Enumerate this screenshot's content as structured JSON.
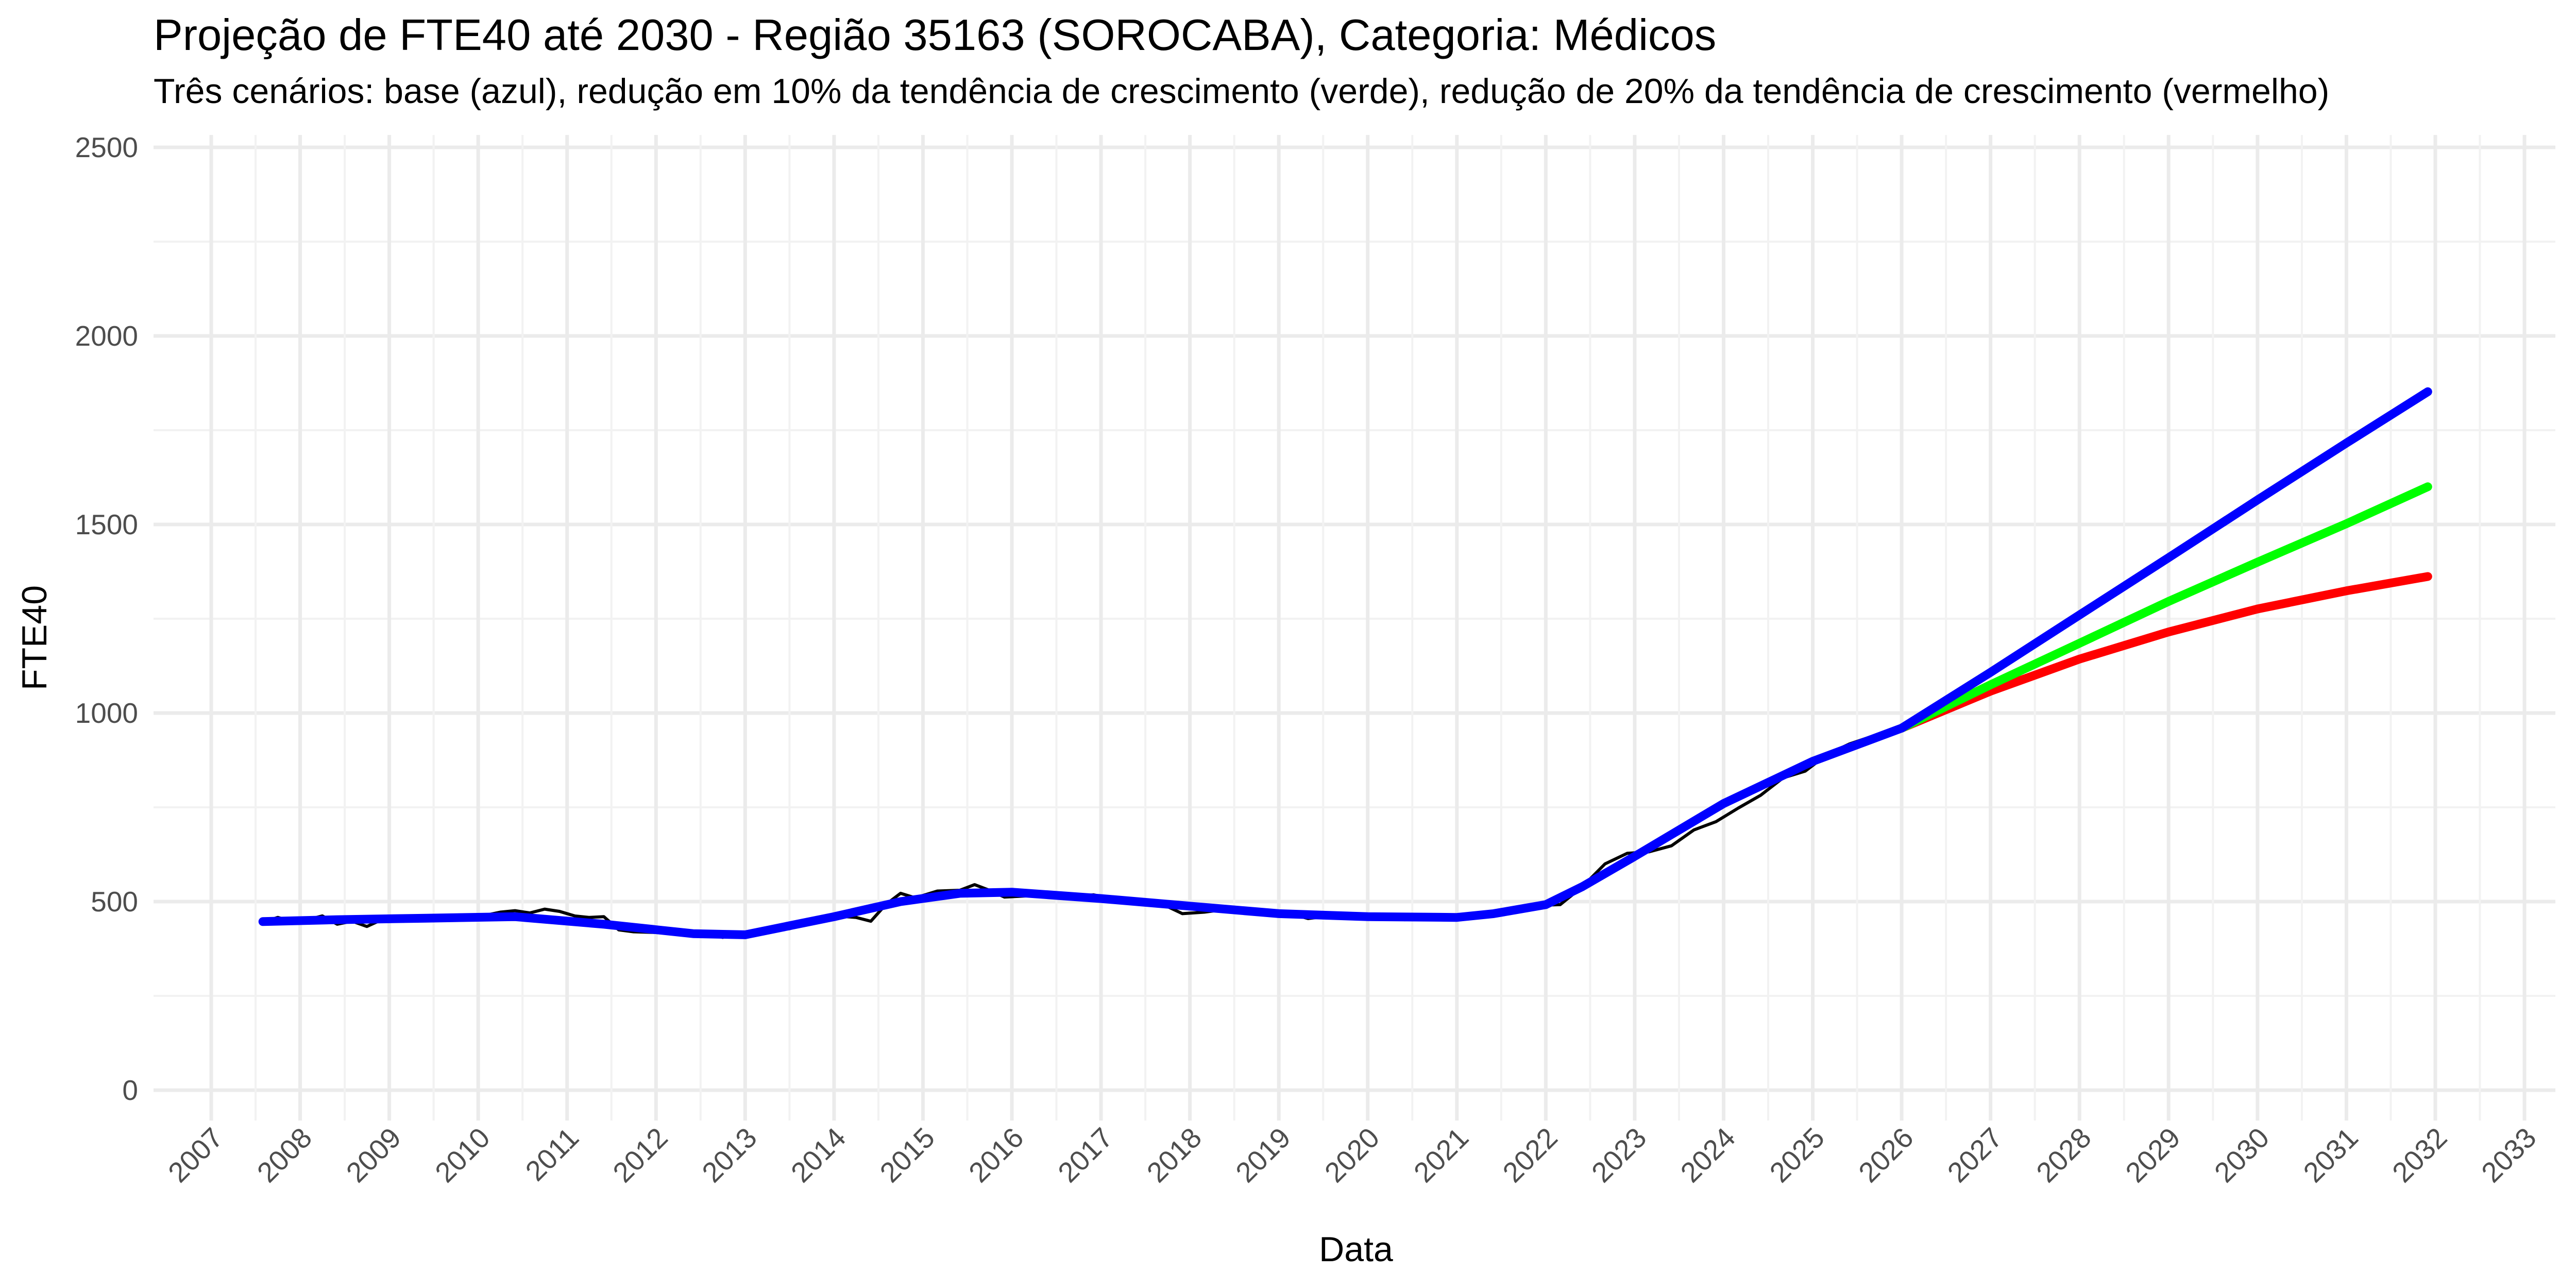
{
  "chart_data": {
    "type": "line",
    "title": "Projeção de FTE40 até 2030 - Região 35163 (SOROCABA), Categoria: Médicos",
    "subtitle": "Três cenários: base (azul), redução em 10% da tendência de crescimento (verde), redução de 20% da tendência de crescimento (vermelho)",
    "xlabel": "Data",
    "ylabel": "FTE40",
    "xlim": [
      "2007-01-01",
      "2033-01-01"
    ],
    "ylim": [
      0,
      2500
    ],
    "y_ticks": [
      0,
      500,
      1000,
      1500,
      2000,
      2500
    ],
    "x_ticks": [
      "2007",
      "2008",
      "2009",
      "2010",
      "2011",
      "2012",
      "2013",
      "2014",
      "2015",
      "2016",
      "2017",
      "2018",
      "2019",
      "2020",
      "2021",
      "2022",
      "2023",
      "2024",
      "2025",
      "2026",
      "2027",
      "2028",
      "2029",
      "2030",
      "2031",
      "2032",
      "2033"
    ],
    "grid": true,
    "legend": "none",
    "series": [
      {
        "key": "observed",
        "color": "#000000",
        "points": [
          [
            "2007-08-01",
            445
          ],
          [
            "2007-10-01",
            458
          ],
          [
            "2007-12-01",
            447
          ],
          [
            "2008-02-01",
            452
          ],
          [
            "2008-04-01",
            462
          ],
          [
            "2008-06-01",
            440
          ],
          [
            "2008-08-01",
            448
          ],
          [
            "2008-10-01",
            434
          ],
          [
            "2008-12-01",
            452
          ],
          [
            "2009-03-01",
            448
          ],
          [
            "2009-06-01",
            456
          ],
          [
            "2009-09-01",
            452
          ],
          [
            "2009-12-01",
            460
          ],
          [
            "2010-02-01",
            464
          ],
          [
            "2010-04-01",
            472
          ],
          [
            "2010-06-01",
            476
          ],
          [
            "2010-08-01",
            470
          ],
          [
            "2010-10-01",
            480
          ],
          [
            "2010-12-01",
            474
          ],
          [
            "2011-02-01",
            462
          ],
          [
            "2011-04-01",
            458
          ],
          [
            "2011-06-01",
            460
          ],
          [
            "2011-08-01",
            425
          ],
          [
            "2011-10-01",
            420
          ],
          [
            "2012-01-01",
            418
          ],
          [
            "2012-04-01",
            416
          ],
          [
            "2012-07-01",
            420
          ],
          [
            "2012-10-01",
            405
          ],
          [
            "2013-01-01",
            418
          ],
          [
            "2013-04-01",
            420
          ],
          [
            "2013-07-01",
            428
          ],
          [
            "2013-10-01",
            445
          ],
          [
            "2014-01-01",
            462
          ],
          [
            "2014-04-01",
            458
          ],
          [
            "2014-06-01",
            448
          ],
          [
            "2014-08-01",
            492
          ],
          [
            "2014-10-01",
            522
          ],
          [
            "2014-12-01",
            510
          ],
          [
            "2015-03-01",
            528
          ],
          [
            "2015-06-01",
            530
          ],
          [
            "2015-08-01",
            545
          ],
          [
            "2015-10-01",
            530
          ],
          [
            "2015-12-01",
            512
          ],
          [
            "2016-03-01",
            515
          ],
          [
            "2016-06-01",
            520
          ],
          [
            "2016-09-01",
            512
          ],
          [
            "2016-12-01",
            518
          ],
          [
            "2017-03-01",
            505
          ],
          [
            "2017-06-01",
            505
          ],
          [
            "2017-09-01",
            496
          ],
          [
            "2017-12-01",
            468
          ],
          [
            "2018-03-01",
            472
          ],
          [
            "2018-06-01",
            480
          ],
          [
            "2018-09-01",
            475
          ],
          [
            "2018-12-01",
            470
          ],
          [
            "2019-03-01",
            466
          ],
          [
            "2019-05-01",
            455
          ],
          [
            "2019-08-01",
            462
          ],
          [
            "2019-12-01",
            458
          ],
          [
            "2020-03-01",
            456
          ],
          [
            "2020-06-01",
            452
          ],
          [
            "2020-09-01",
            456
          ],
          [
            "2020-12-01",
            458
          ],
          [
            "2021-03-01",
            462
          ],
          [
            "2021-06-01",
            472
          ],
          [
            "2021-09-01",
            485
          ],
          [
            "2021-12-01",
            490
          ],
          [
            "2022-03-01",
            492
          ],
          [
            "2022-06-01",
            540
          ],
          [
            "2022-09-01",
            600
          ],
          [
            "2022-12-01",
            628
          ],
          [
            "2023-03-01",
            632
          ],
          [
            "2023-06-01",
            648
          ],
          [
            "2023-09-01",
            690
          ],
          [
            "2023-12-01",
            712
          ],
          [
            "2024-03-01",
            748
          ],
          [
            "2024-06-01",
            782
          ],
          [
            "2024-09-01",
            828
          ],
          [
            "2024-12-01",
            846
          ],
          [
            "2025-03-01",
            890
          ],
          [
            "2025-06-01",
            918
          ],
          [
            "2025-09-01",
            938
          ],
          [
            "2025-12-01",
            955
          ],
          [
            "2026-01-01",
            960
          ]
        ]
      },
      {
        "key": "vermelho",
        "color": "#ff0000",
        "points": [
          [
            "2026-01-01",
            960
          ],
          [
            "2027-01-01",
            1058
          ],
          [
            "2028-01-01",
            1143
          ],
          [
            "2029-01-01",
            1215
          ],
          [
            "2030-01-01",
            1276
          ],
          [
            "2031-01-01",
            1324
          ],
          [
            "2031-12-01",
            1362
          ]
        ]
      },
      {
        "key": "verde",
        "color": "#00ff00",
        "points": [
          [
            "2026-01-01",
            960
          ],
          [
            "2027-01-01",
            1075
          ],
          [
            "2028-01-01",
            1185
          ],
          [
            "2029-01-01",
            1296
          ],
          [
            "2030-01-01",
            1400
          ],
          [
            "2031-01-01",
            1502
          ],
          [
            "2031-12-01",
            1600
          ]
        ]
      },
      {
        "key": "azul",
        "color": "#0000ff",
        "points": [
          [
            "2007-08-01",
            447
          ],
          [
            "2008-06-01",
            452
          ],
          [
            "2009-06-01",
            456
          ],
          [
            "2010-06-01",
            460
          ],
          [
            "2011-06-01",
            440
          ],
          [
            "2012-06-01",
            415
          ],
          [
            "2013-01-01",
            412
          ],
          [
            "2014-01-01",
            460
          ],
          [
            "2014-10-01",
            500
          ],
          [
            "2015-06-01",
            522
          ],
          [
            "2016-01-01",
            525
          ],
          [
            "2017-01-01",
            508
          ],
          [
            "2018-01-01",
            488
          ],
          [
            "2019-01-01",
            468
          ],
          [
            "2020-01-01",
            460
          ],
          [
            "2021-01-01",
            458
          ],
          [
            "2021-06-01",
            468
          ],
          [
            "2022-01-01",
            492
          ],
          [
            "2022-06-01",
            540
          ],
          [
            "2023-01-01",
            620
          ],
          [
            "2024-01-01",
            760
          ],
          [
            "2025-01-01",
            872
          ],
          [
            "2026-01-01",
            960
          ],
          [
            "2027-01-01",
            1108
          ],
          [
            "2028-01-01",
            1260
          ],
          [
            "2029-01-01",
            1412
          ],
          [
            "2030-01-01",
            1565
          ],
          [
            "2031-01-01",
            1716
          ],
          [
            "2031-12-01",
            1852
          ]
        ]
      }
    ]
  }
}
